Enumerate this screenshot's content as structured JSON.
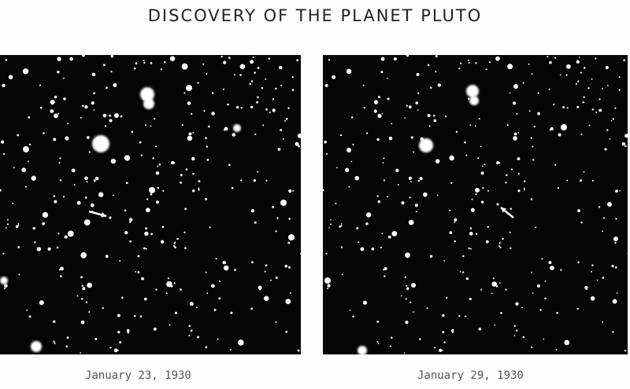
{
  "title": "DISCOVERY OF THE PLANET PLUTO",
  "plates": [
    {
      "caption": "January 23, 1930",
      "marker": "arrow-pointing-right"
    },
    {
      "caption": "January 29, 1930",
      "marker": "arrow-pointing-up-left"
    }
  ],
  "colors": {
    "sky": "#050505",
    "stars": "#ffffff",
    "background": "#fdfdfd"
  }
}
